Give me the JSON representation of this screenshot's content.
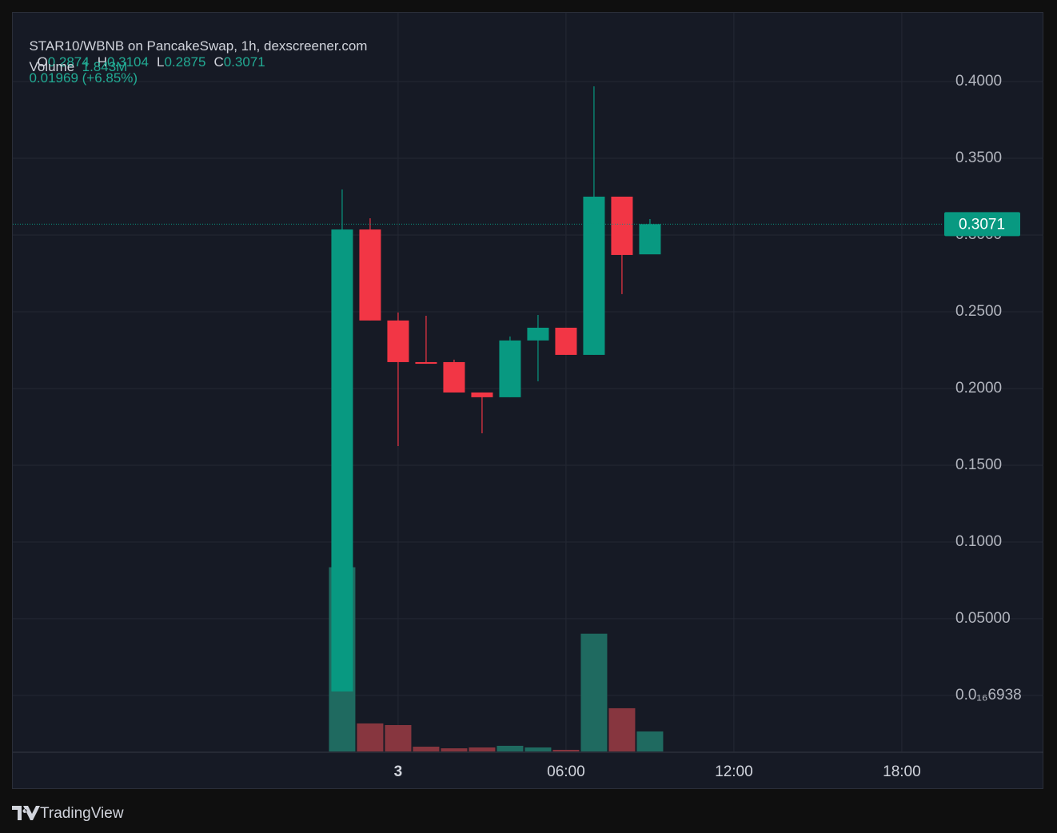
{
  "chart_data": {
    "type": "candlestick",
    "title": "STAR10/WBNB on PancakeSwap, 1h, dexscreener.com",
    "ohlc_legend": [
      {
        "key": "O",
        "value": "0.2874"
      },
      {
        "key": "H",
        "value": "0.3104"
      },
      {
        "key": "L",
        "value": "0.2875"
      },
      {
        "key": "C",
        "value": "0.3071"
      }
    ],
    "change": "0.01969 (+6.85%)",
    "volume_value": "1.843M",
    "last_price_label": "0.3071",
    "x": [
      -2,
      -1,
      0,
      1,
      2,
      3,
      4,
      5,
      6,
      7,
      8,
      9
    ],
    "open": [
      0.0026,
      0.3036,
      0.2443,
      0.2172,
      0.2172,
      0.1974,
      0.1943,
      0.2313,
      0.2396,
      0.2219,
      0.325,
      0.2874
    ],
    "high": [
      0.3297,
      0.3109,
      0.2495,
      0.2474,
      0.2188,
      0.1974,
      0.2339,
      0.2479,
      0.2396,
      0.3969,
      0.325,
      0.3104
    ],
    "low": [
      0.0026,
      0.2443,
      0.1625,
      0.2161,
      0.1974,
      0.1708,
      0.1943,
      0.2047,
      0.2219,
      0.2219,
      0.2615,
      0.2875
    ],
    "close": [
      0.3036,
      0.2443,
      0.2172,
      0.2161,
      0.1974,
      0.1943,
      0.2313,
      0.2396,
      0.2219,
      0.325,
      0.287,
      0.3071
    ],
    "volume": {
      "name": "Volume",
      "axis": "y2",
      "values": [
        16960000,
        2580000,
        2430000,
        440000,
        290000,
        370000,
        520000,
        370000,
        150000,
        10840000,
        3980000,
        1843000
      ]
    },
    "up_color": "#089981",
    "down_color": "#f23645",
    "volume_up_color": "#1f6a60",
    "volume_down_color": "#87363f",
    "xlim": [
      -13.77,
      23.06
    ],
    "xticks": [
      {
        "value": 0,
        "label": "3"
      },
      {
        "value": 6,
        "label": "06:00"
      },
      {
        "value": 12,
        "label": "12:00"
      },
      {
        "value": 18,
        "label": "18:00"
      }
    ],
    "ylim": [
      -0.0365,
      0.4448
    ],
    "yticks": [
      {
        "value": 6.938e-17,
        "label": "0.0₁₆6938"
      },
      {
        "value": 0.05,
        "label": "0.05000"
      },
      {
        "value": 0.1,
        "label": "0.1000"
      },
      {
        "value": 0.15,
        "label": "0.1500"
      },
      {
        "value": 0.2,
        "label": "0.2000"
      },
      {
        "value": 0.25,
        "label": "0.2500"
      },
      {
        "value": 0.3,
        "label": "0.3000"
      },
      {
        "value": 0.35,
        "label": "0.3500"
      },
      {
        "value": 0.4,
        "label": "0.4000"
      }
    ],
    "y2lim": [
      0,
      68000000
    ],
    "grid": true,
    "branding": "TradingView"
  }
}
